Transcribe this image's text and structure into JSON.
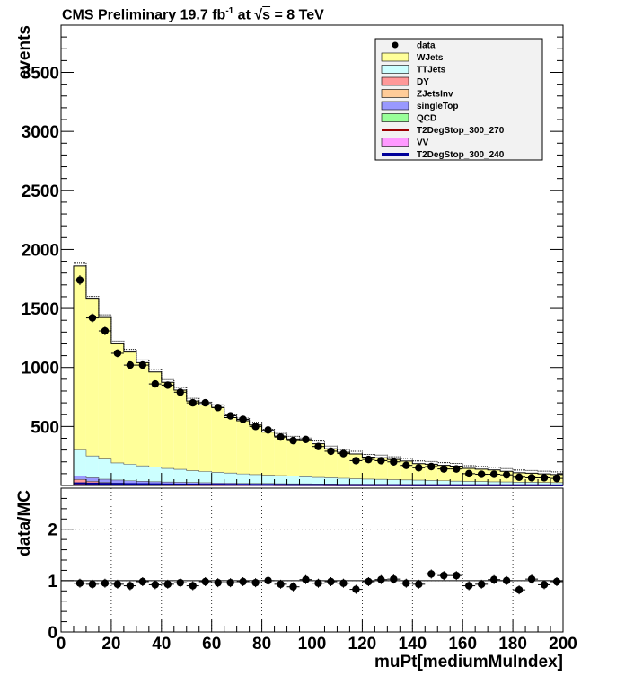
{
  "header": {
    "experiment": "CMS Preliminary",
    "luminosity": "19.7",
    "lumi_unit": "fb",
    "lumi_exp": "-1",
    "energy_prefix": "at",
    "sqrt_sym": "√",
    "s_sym": "s",
    "energy": "= 8 TeV"
  },
  "chart_data": [
    {
      "type": "bar",
      "subtype": "stacked-histogram",
      "ylabel": "events",
      "xlim": [
        0,
        200
      ],
      "ylim": [
        0,
        3900
      ],
      "yticks": [
        500,
        1000,
        1500,
        2000,
        2500,
        3000,
        3500
      ],
      "grid": false,
      "legend_position": "top-right",
      "bin_edges": [
        5,
        10,
        15,
        20,
        25,
        30,
        35,
        40,
        45,
        50,
        55,
        60,
        65,
        70,
        75,
        80,
        85,
        90,
        95,
        100,
        105,
        110,
        115,
        120,
        125,
        130,
        135,
        140,
        145,
        150,
        155,
        160,
        165,
        170,
        175,
        180,
        185,
        190,
        195,
        200
      ],
      "legend": [
        {
          "label": "data",
          "style": "marker",
          "color": "#000000"
        },
        {
          "label": "WJets",
          "style": "fill",
          "color": "#ffff99"
        },
        {
          "label": "TTJets",
          "style": "fill",
          "color": "#ccffff"
        },
        {
          "label": "DY",
          "style": "fill",
          "color": "#ff9999"
        },
        {
          "label": "ZJetsInv",
          "style": "fill",
          "color": "#ffcc99"
        },
        {
          "label": "singleTop",
          "style": "fill",
          "color": "#9999ff"
        },
        {
          "label": "QCD",
          "style": "fill",
          "color": "#99ff99"
        },
        {
          "label": "T2DegStop_300_270",
          "style": "line",
          "color": "#990000"
        },
        {
          "label": "VV",
          "style": "fill",
          "color": "#ff99ff"
        },
        {
          "label": "T2DegStop_300_240",
          "style": "line",
          "color": "#000099"
        }
      ],
      "series": [
        {
          "name": "DY",
          "color": "#ff9999",
          "values": [
            50,
            35,
            25,
            20,
            15,
            12,
            10,
            8,
            7,
            6,
            5,
            4,
            4,
            3,
            3,
            3,
            2,
            2,
            2,
            2,
            2,
            1,
            1,
            1,
            1,
            1,
            1,
            1,
            1,
            1,
            1,
            1,
            1,
            1,
            1,
            1,
            1,
            1,
            1
          ]
        },
        {
          "name": "singleTop",
          "color": "#9999ff",
          "values": [
            30,
            30,
            28,
            26,
            25,
            24,
            22,
            21,
            20,
            19,
            18,
            17,
            16,
            15,
            14,
            14,
            13,
            12,
            12,
            11,
            11,
            10,
            10,
            9,
            9,
            8,
            8,
            8,
            7,
            7,
            6,
            6,
            6,
            5,
            5,
            5,
            5,
            4,
            4
          ]
        },
        {
          "name": "TTJets",
          "color": "#ccffff",
          "values": [
            220,
            185,
            170,
            145,
            140,
            130,
            125,
            115,
            110,
            100,
            95,
            90,
            85,
            80,
            75,
            70,
            68,
            64,
            60,
            55,
            52,
            50,
            46,
            44,
            42,
            40,
            38,
            36,
            34,
            32,
            30,
            28,
            27,
            25,
            24,
            22,
            21,
            20,
            19
          ]
        },
        {
          "name": "WJets",
          "color": "#ffff99",
          "values": [
            1560,
            1330,
            1200,
            1010,
            950,
            875,
            805,
            730,
            670,
            590,
            565,
            550,
            470,
            450,
            420,
            365,
            335,
            315,
            305,
            285,
            245,
            220,
            210,
            186,
            182,
            171,
            160,
            140,
            138,
            130,
            127,
            110,
            104,
            100,
            90,
            80,
            77,
            73,
            68
          ]
        },
        {
          "name": "data",
          "color": "#000000",
          "values": [
            1740,
            1420,
            1310,
            1120,
            1020,
            1020,
            860,
            850,
            790,
            700,
            700,
            660,
            590,
            560,
            500,
            470,
            410,
            380,
            390,
            330,
            290,
            270,
            210,
            220,
            210,
            200,
            170,
            150,
            160,
            140,
            140,
            100,
            95,
            95,
            90,
            70,
            65,
            65,
            60
          ]
        },
        {
          "name": "T2DegStop_300_270",
          "color": "#990000",
          "values": [
            16,
            14,
            12,
            11,
            10,
            9,
            8,
            7,
            7,
            6,
            6,
            5,
            5,
            4,
            4,
            4,
            3,
            3,
            3,
            3,
            2,
            2,
            2,
            2,
            2,
            2,
            2,
            1,
            1,
            1,
            1,
            1,
            1,
            1,
            1,
            1,
            1,
            1,
            1
          ]
        },
        {
          "name": "T2DegStop_300_240",
          "color": "#000099",
          "values": [
            18,
            16,
            14,
            13,
            12,
            11,
            10,
            9,
            8,
            8,
            7,
            7,
            6,
            6,
            5,
            5,
            5,
            4,
            4,
            4,
            4,
            3,
            3,
            3,
            3,
            3,
            2,
            2,
            2,
            2,
            2,
            2,
            2,
            2,
            2,
            2,
            2,
            2,
            1
          ]
        }
      ]
    },
    {
      "type": "scatter",
      "ylabel": "data/MC",
      "xlabel": "muPt[mediumMuIndex]",
      "xlim": [
        0,
        200
      ],
      "ylim": [
        0,
        2.8
      ],
      "xticks": [
        0,
        20,
        40,
        60,
        80,
        100,
        120,
        140,
        160,
        180,
        200
      ],
      "yticks": [
        0,
        1,
        2
      ],
      "grid": true,
      "reference_line": 1,
      "x": [
        7.5,
        12.5,
        17.5,
        22.5,
        27.5,
        32.5,
        37.5,
        42.5,
        47.5,
        52.5,
        57.5,
        62.5,
        67.5,
        72.5,
        77.5,
        82.5,
        87.5,
        92.5,
        97.5,
        102.5,
        107.5,
        112.5,
        117.5,
        122.5,
        127.5,
        132.5,
        137.5,
        142.5,
        147.5,
        152.5,
        157.5,
        162.5,
        167.5,
        172.5,
        177.5,
        182.5,
        187.5,
        192.5,
        197.5
      ],
      "y": [
        0.95,
        0.93,
        0.95,
        0.93,
        0.9,
        0.98,
        0.92,
        0.93,
        0.96,
        0.9,
        0.98,
        0.96,
        0.96,
        0.98,
        0.96,
        1.0,
        0.93,
        0.88,
        1.02,
        0.95,
        0.98,
        0.95,
        0.83,
        0.98,
        1.02,
        1.03,
        0.95,
        0.93,
        1.13,
        1.1,
        1.1,
        0.9,
        0.93,
        1.02,
        1.0,
        0.82,
        1.03,
        0.92,
        0.98
      ]
    }
  ]
}
